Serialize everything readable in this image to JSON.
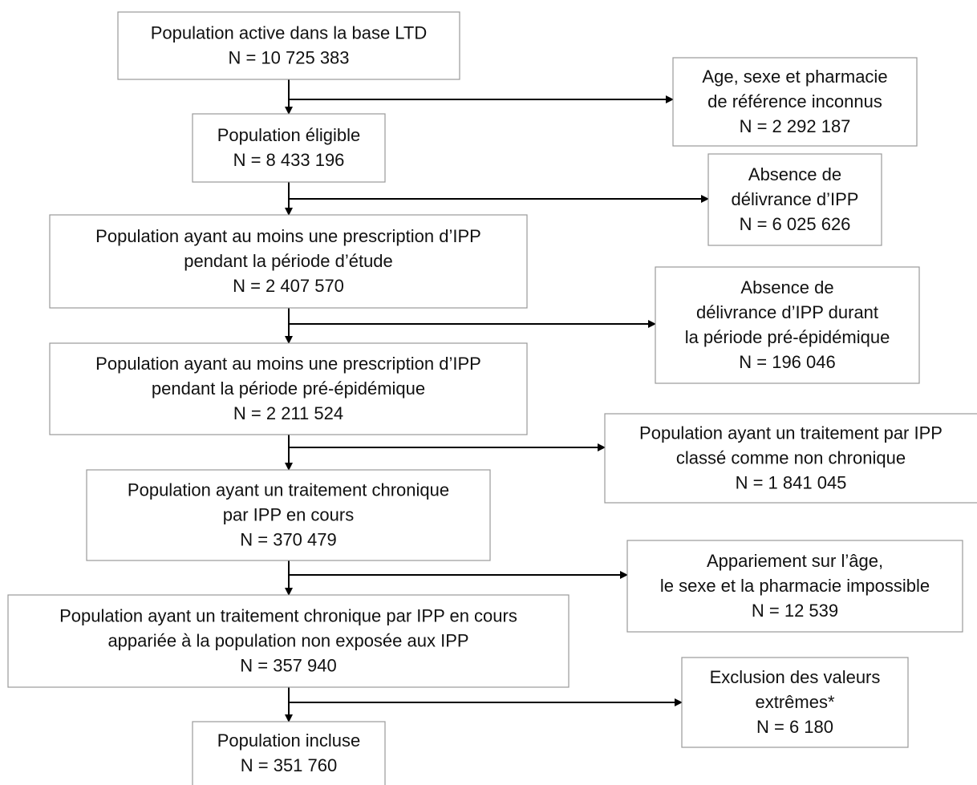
{
  "steps": [
    {
      "lines": [
        "Population active dans la base LTD",
        "N = 10 725 383"
      ]
    },
    {
      "lines": [
        "Population éligible",
        "N = 8 433 196"
      ]
    },
    {
      "lines": [
        "Population ayant au moins une prescription d’IPP",
        "pendant la période d’étude",
        "N = 2 407 570"
      ]
    },
    {
      "lines": [
        "Population ayant au moins une prescription d’IPP",
        "pendant la période pré-épidémique",
        "N = 2 211 524"
      ]
    },
    {
      "lines": [
        "Population ayant un traitement chronique",
        "par IPP en cours",
        "N = 370 479"
      ]
    },
    {
      "lines": [
        "Population ayant un traitement chronique par IPP en cours",
        "appariée à la population non exposée aux IPP",
        "N = 357 940"
      ]
    },
    {
      "lines": [
        "Population incluse",
        "N =  351 760"
      ]
    }
  ],
  "exclusions": [
    {
      "lines": [
        "Age, sexe et pharmacie",
        "de référence inconnus",
        "N = 2 292 187"
      ]
    },
    {
      "lines": [
        "Absence de",
        "délivrance d’IPP",
        "N = 6 025 626"
      ]
    },
    {
      "lines": [
        "Absence de",
        "délivrance d’IPP durant",
        "la période pré-épidémique",
        "N = 196 046"
      ]
    },
    {
      "lines": [
        "Population ayant un traitement par IPP",
        "classé comme non chronique",
        "N = 1 841 045"
      ]
    },
    {
      "lines": [
        "Appariement sur l’âge,",
        "le sexe et la pharmacie impossible",
        "N = 12 539"
      ]
    },
    {
      "lines": [
        "Exclusion des valeurs",
        "extrêmes*",
        "N = 6 180"
      ]
    }
  ]
}
